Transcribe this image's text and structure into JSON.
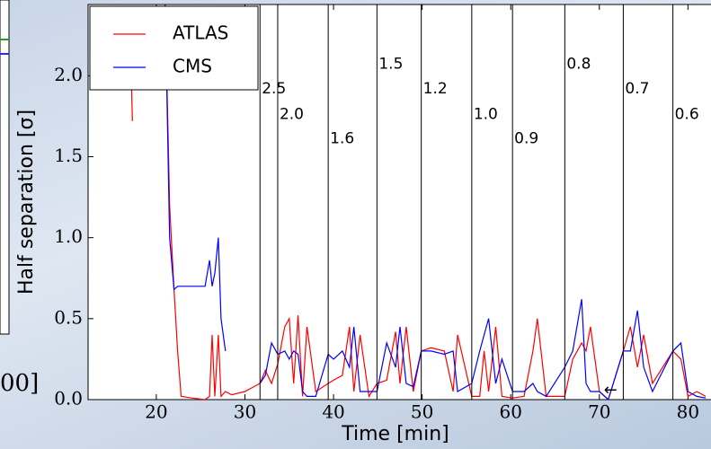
{
  "chart_data": {
    "type": "line",
    "xlabel": "Time [min]",
    "ylabel": "Half separation [σ]",
    "xlim": [
      12.3,
      82.6
    ],
    "ylim": [
      0,
      2.44
    ],
    "xticks": [
      20,
      30,
      40,
      50,
      60,
      70,
      80
    ],
    "yticks": [
      {
        "value": 0,
        "label": "0.0"
      },
      {
        "value": 0.5,
        "label": "0.5"
      },
      {
        "value": 1.0,
        "label": "1.0"
      },
      {
        "value": 1.5,
        "label": "1.5"
      },
      {
        "value": 2.0,
        "label": "2.0"
      }
    ],
    "grid": false,
    "legend": "upper left",
    "x": [
      17,
      17.3,
      18,
      21,
      21.5,
      22,
      22.4,
      22.8,
      24,
      25.5,
      26,
      26.3,
      26.6,
      27,
      27.3,
      27.8,
      28.5,
      30,
      31.7,
      32.3,
      33,
      33.7,
      34.5,
      35,
      35.5,
      36,
      36.5,
      37,
      38,
      39.4,
      40,
      41,
      41.8,
      42.3,
      43,
      44,
      44.9,
      46,
      47,
      47.5,
      48.2,
      49,
      49.9,
      51,
      52.5,
      53.5,
      54,
      55.6,
      56.5,
      57,
      57.5,
      58.3,
      59,
      60.2,
      61.5,
      62.5,
      63,
      64,
      66.1,
      67,
      68,
      68.5,
      69,
      70,
      71,
      72.7,
      73.5,
      74.3,
      75,
      76,
      78.3,
      79.2,
      80,
      81,
      82
    ],
    "series": [
      {
        "name": "ATLAS",
        "color": "#ff0000",
        "values": [
          2.4,
          1.72,
          null,
          2.44,
          1.2,
          0.68,
          0.3,
          0.02,
          0.01,
          0.0,
          0.02,
          0.4,
          0.02,
          0.4,
          0.02,
          0.05,
          0.03,
          0.05,
          0.1,
          0.18,
          0.1,
          0.22,
          0.45,
          0.5,
          0.1,
          0.52,
          0.02,
          0.45,
          0.05,
          0.1,
          0.12,
          0.15,
          0.45,
          0.05,
          0.4,
          0.02,
          0.1,
          0.12,
          0.42,
          0.1,
          0.45,
          0.05,
          0.3,
          0.32,
          0.3,
          0.05,
          0.4,
          0.02,
          0.02,
          0.3,
          0.05,
          0.45,
          0.02,
          0.01,
          0.02,
          0.3,
          0.5,
          0.02,
          0.02,
          0.25,
          0.35,
          0.3,
          0.45,
          0.05,
          0.0,
          0.3,
          0.45,
          0.2,
          0.4,
          0.1,
          0.3,
          0.25,
          0.02,
          0.05,
          0.02
        ]
      },
      {
        "name": "CMS",
        "color": "#0000ff",
        "values": [
          null,
          null,
          null,
          2.44,
          1.0,
          0.68,
          0.7,
          0.7,
          0.7,
          0.7,
          0.86,
          0.7,
          0.78,
          1.0,
          0.5,
          0.3,
          null,
          null,
          0.1,
          0.15,
          0.35,
          0.28,
          0.3,
          0.25,
          0.3,
          0.28,
          0.05,
          0.02,
          0.02,
          0.28,
          0.25,
          0.3,
          0.2,
          0.45,
          0.05,
          0.05,
          0.05,
          0.35,
          0.2,
          0.45,
          0.1,
          0.08,
          0.3,
          0.3,
          0.28,
          0.3,
          0.05,
          0.1,
          0.3,
          0.4,
          0.5,
          0.1,
          0.25,
          0.05,
          0.05,
          0.1,
          0.05,
          0.02,
          0.2,
          0.3,
          0.62,
          0.1,
          0.05,
          0.05,
          0.0,
          0.3,
          0.3,
          0.55,
          0.2,
          0.05,
          0.3,
          0.35,
          0.05,
          0.02,
          0.01
        ]
      }
    ],
    "vlines": [
      {
        "x": 31.7,
        "label": "2.5"
      },
      {
        "x": 33.7,
        "label": "2.0"
      },
      {
        "x": 39.4,
        "label": "1.6"
      },
      {
        "x": 44.9,
        "label": "1.5"
      },
      {
        "x": 49.9,
        "label": "1.2"
      },
      {
        "x": 55.6,
        "label": "1.0"
      },
      {
        "x": 60.2,
        "label": "0.9"
      },
      {
        "x": 66.1,
        "label": "0.8"
      },
      {
        "x": 72.7,
        "label": "0.7"
      },
      {
        "x": 78.3,
        "label": "0.6"
      }
    ],
    "fragments": {
      "left_label": "00]",
      "arrow": "←"
    }
  }
}
